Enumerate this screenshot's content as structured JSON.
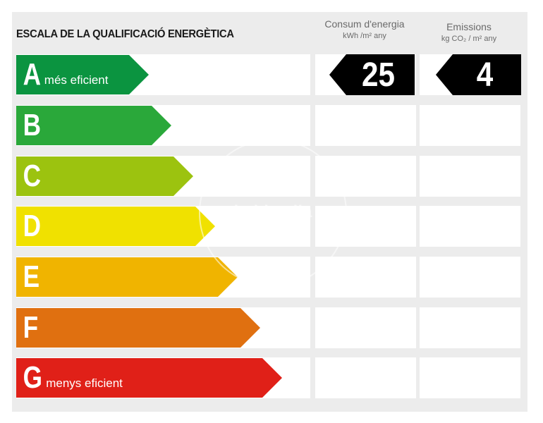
{
  "header": {
    "title": "ESCALA DE LA QUALIFICACIÓ ENERGÈTICA",
    "consumption_label": "Consum d'energia",
    "consumption_unit": "kWh /m² any",
    "emissions_label": "Emissions",
    "emissions_unit": "kg CO₂ / m² any"
  },
  "ratings": [
    {
      "letter": "A",
      "desc": "més eficient",
      "color": "#0b9440"
    },
    {
      "letter": "B",
      "desc": "",
      "color": "#2aa83a"
    },
    {
      "letter": "C",
      "desc": "",
      "color": "#9cc30f"
    },
    {
      "letter": "D",
      "desc": "",
      "color": "#f0e100"
    },
    {
      "letter": "E",
      "desc": "",
      "color": "#f0b400"
    },
    {
      "letter": "F",
      "desc": "",
      "color": "#e07010"
    },
    {
      "letter": "G",
      "desc": "menys eficient",
      "color": "#e02018"
    }
  ],
  "result": {
    "rating": "A",
    "consumption_value": "25",
    "emissions_value": "4"
  },
  "watermark": {
    "text": "habitaclia"
  }
}
